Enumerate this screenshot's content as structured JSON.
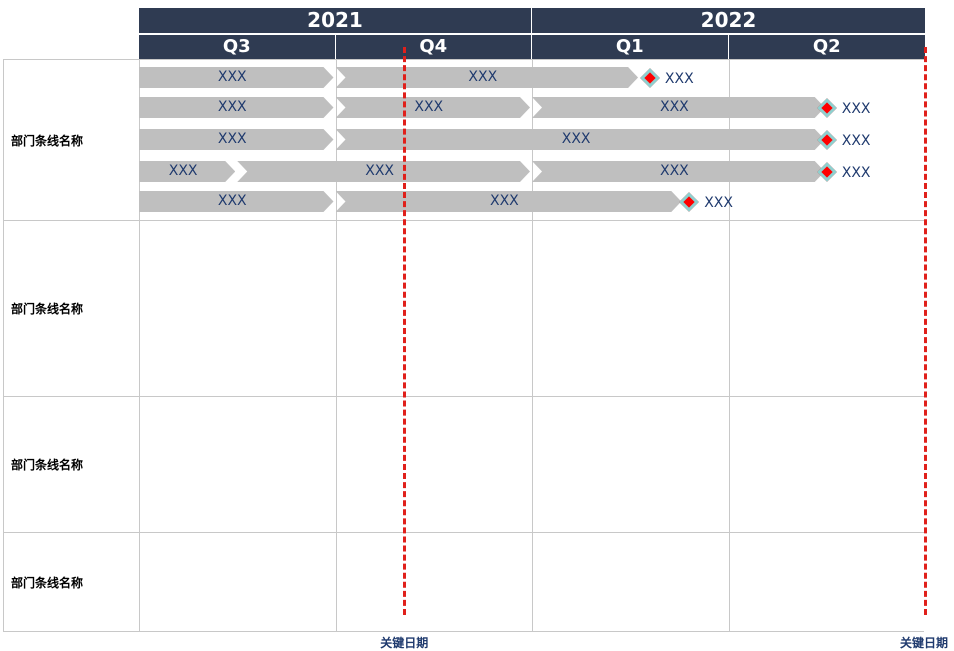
{
  "colors": {
    "header_bg": "#2f3b52",
    "header_text": "#ffffff",
    "bar_fill": "#bfbfbf",
    "bar_text": "#1f3a6e",
    "key_date_line": "#e0201b",
    "milestone_fill": "#ff0000",
    "milestone_border": "#8fd0cf",
    "grid": "#c8c8c8"
  },
  "timeline": {
    "years": [
      "2021",
      "2022"
    ],
    "quarters": [
      "Q3",
      "Q4",
      "Q1",
      "Q2"
    ]
  },
  "departments": [
    {
      "label": "部门条线名称",
      "rows": [
        {
          "bars": [
            {
              "start": 0.0,
              "end": 1.0,
              "label": "XXX"
            },
            {
              "start": 1.0,
              "end": 2.55,
              "label": "XXX"
            }
          ],
          "milestone": {
            "at": 2.6,
            "label": "XXX"
          }
        },
        {
          "bars": [
            {
              "start": 0.0,
              "end": 1.0,
              "label": "XXX"
            },
            {
              "start": 1.0,
              "end": 2.0,
              "label": "XXX"
            },
            {
              "start": 2.0,
              "end": 3.5,
              "label": "XXX"
            }
          ],
          "milestone": {
            "at": 3.5,
            "label": "XXX"
          }
        },
        {
          "bars": [
            {
              "start": 0.0,
              "end": 1.0,
              "label": "XXX"
            },
            {
              "start": 1.0,
              "end": 3.5,
              "label": "XXX"
            }
          ],
          "milestone": {
            "at": 3.5,
            "label": "XXX"
          }
        },
        {
          "bars": [
            {
              "start": 0.0,
              "end": 0.5,
              "label": "XXX"
            },
            {
              "start": 0.5,
              "end": 2.0,
              "label": "XXX"
            },
            {
              "start": 2.0,
              "end": 3.5,
              "label": "XXX"
            }
          ],
          "milestone": {
            "at": 3.5,
            "label": "XXX"
          }
        },
        {
          "bars": [
            {
              "start": 0.0,
              "end": 1.0,
              "label": "XXX"
            },
            {
              "start": 1.0,
              "end": 2.77,
              "label": "XXX"
            }
          ],
          "milestone": {
            "at": 2.8,
            "label": "XXX"
          }
        }
      ]
    },
    {
      "label": "部门条线名称",
      "rows": []
    },
    {
      "label": "部门条线名称",
      "rows": []
    },
    {
      "label": "部门条线名称",
      "rows": []
    }
  ],
  "key_dates": [
    {
      "at": 1.35,
      "label": "关键日期"
    },
    {
      "at": 4.0,
      "label": "关键日期"
    }
  ]
}
